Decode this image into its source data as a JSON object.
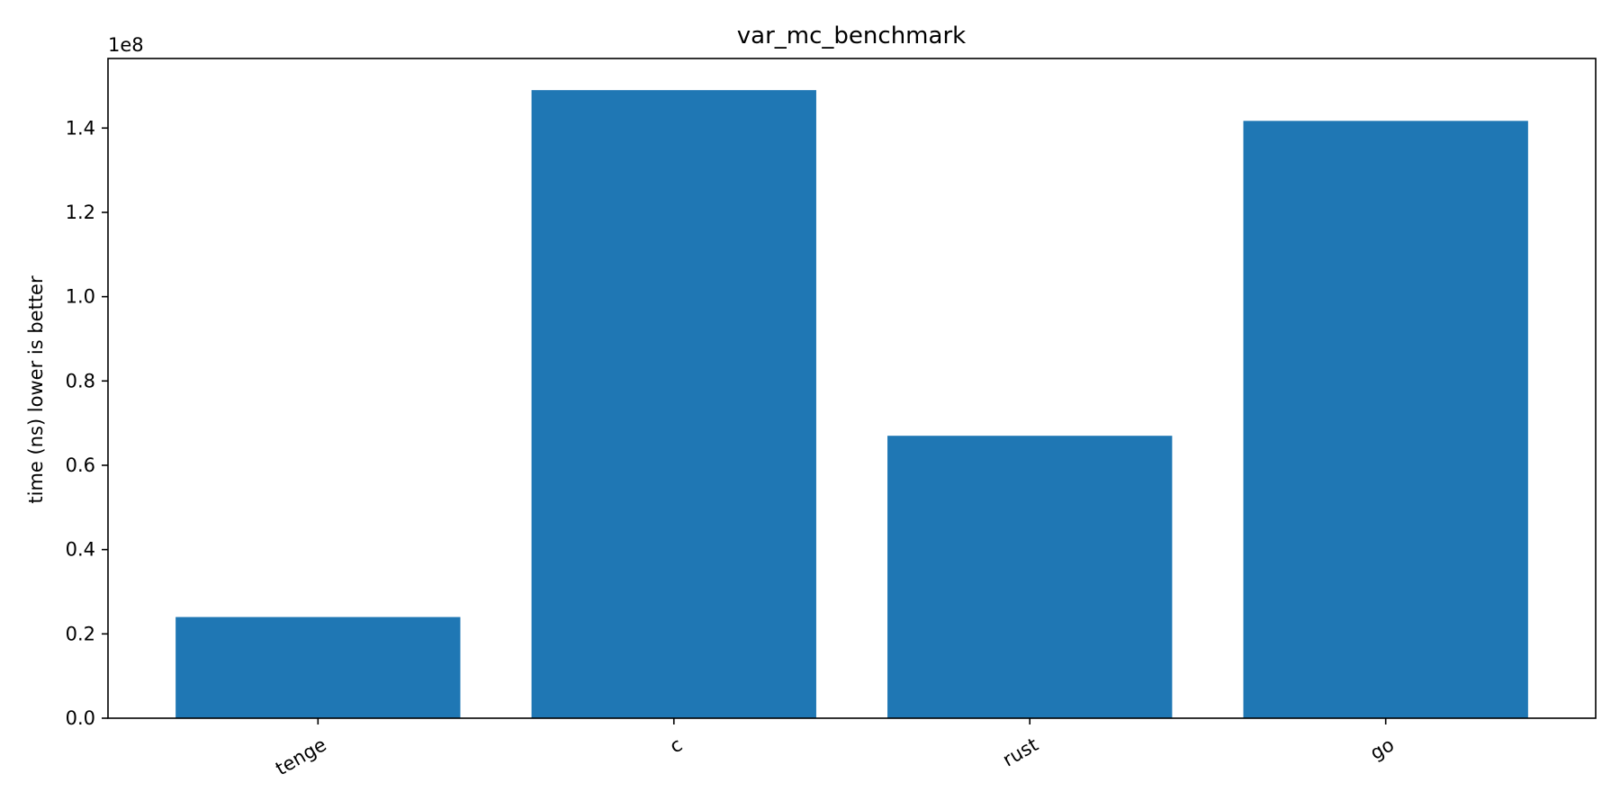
{
  "chart_data": {
    "type": "bar",
    "title": "var_mc_benchmark",
    "xlabel": "",
    "ylabel": "time (ns) lower is better",
    "y_offset_label": "1e8",
    "categories": [
      "tenge",
      "c",
      "rust",
      "go"
    ],
    "values": [
      24000000,
      149000000,
      67000000,
      141700000
    ],
    "ylim": [
      0,
      156500000
    ],
    "yticks": [
      0,
      20000000,
      40000000,
      60000000,
      80000000,
      100000000,
      120000000,
      140000000
    ],
    "ytick_labels": [
      "0.0",
      "0.2",
      "0.4",
      "0.6",
      "0.8",
      "1.0",
      "1.2",
      "1.4"
    ],
    "bar_color": "#1f77b4",
    "grid": false,
    "legend": "none"
  }
}
